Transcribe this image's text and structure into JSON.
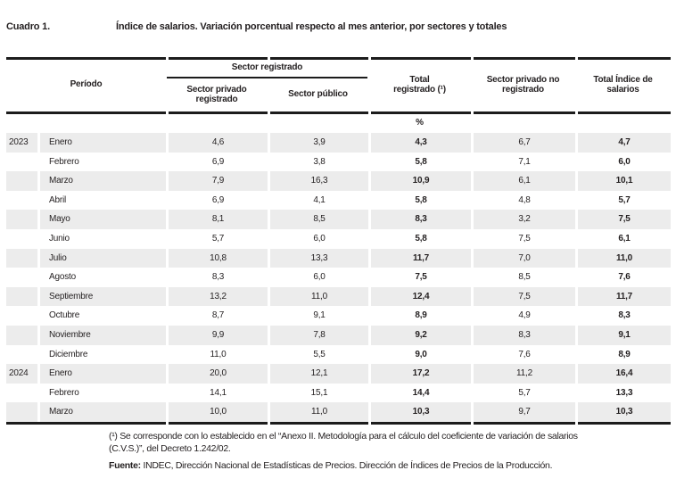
{
  "title": {
    "label": "Cuadro 1.",
    "text": "Índice de salarios. Variación porcentual respecto al mes anterior, por sectores y totales"
  },
  "table": {
    "header": {
      "periodo": "Período",
      "group_sector_registrado": "Sector registrado",
      "sector_privado_registrado": {
        "line1": "Sector privado",
        "line2": "registrado"
      },
      "sector_publico": {
        "line1": "Sector público"
      },
      "total_registrado": {
        "line1": "Total",
        "line2": "registrado (¹)"
      },
      "sector_privado_no_registrado": {
        "line1": "Sector privado no",
        "line2": "registrado"
      },
      "total_indice_salarios": {
        "line1": "Total Índice de",
        "line2": "salarios"
      },
      "unit": "%"
    },
    "rows": [
      {
        "year": "2023",
        "month": "Enero",
        "values": [
          "4,6",
          "3,9",
          "4,3",
          "6,7",
          "4,7"
        ]
      },
      {
        "year": "",
        "month": "Febrero",
        "values": [
          "6,9",
          "3,8",
          "5,8",
          "7,1",
          "6,0"
        ]
      },
      {
        "year": "",
        "month": "Marzo",
        "values": [
          "7,9",
          "16,3",
          "10,9",
          "6,1",
          "10,1"
        ]
      },
      {
        "year": "",
        "month": "Abril",
        "values": [
          "6,9",
          "4,1",
          "5,8",
          "4,8",
          "5,7"
        ]
      },
      {
        "year": "",
        "month": "Mayo",
        "values": [
          "8,1",
          "8,5",
          "8,3",
          "3,2",
          "7,5"
        ]
      },
      {
        "year": "",
        "month": "Junio",
        "values": [
          "5,7",
          "6,0",
          "5,8",
          "7,5",
          "6,1"
        ]
      },
      {
        "year": "",
        "month": "Julio",
        "values": [
          "10,8",
          "13,3",
          "11,7",
          "7,0",
          "11,0"
        ]
      },
      {
        "year": "",
        "month": "Agosto",
        "values": [
          "8,3",
          "6,0",
          "7,5",
          "8,5",
          "7,6"
        ]
      },
      {
        "year": "",
        "month": "Septiembre",
        "values": [
          "13,2",
          "11,0",
          "12,4",
          "7,5",
          "11,7"
        ]
      },
      {
        "year": "",
        "month": "Octubre",
        "values": [
          "8,7",
          "9,1",
          "8,9",
          "4,9",
          "8,3"
        ]
      },
      {
        "year": "",
        "month": "Noviembre",
        "values": [
          "9,9",
          "7,8",
          "9,2",
          "8,3",
          "9,1"
        ]
      },
      {
        "year": "",
        "month": "Diciembre",
        "values": [
          "11,0",
          "5,5",
          "9,0",
          "7,6",
          "8,9"
        ]
      },
      {
        "year": "2024",
        "month": "Enero",
        "values": [
          "20,0",
          "12,1",
          "17,2",
          "11,2",
          "16,4"
        ]
      },
      {
        "year": "",
        "month": "Febrero",
        "values": [
          "14,1",
          "15,1",
          "14,4",
          "5,7",
          "13,3"
        ]
      },
      {
        "year": "",
        "month": "Marzo",
        "values": [
          "10,0",
          "11,0",
          "10,3",
          "9,7",
          "10,3"
        ]
      }
    ]
  },
  "footnotes": {
    "line1": "(¹) Se corresponde con lo establecido en el “Anexo II. Metodología para el cálculo del coeficiente de variación de salarios",
    "line2": "(C.V.S.)”, del Decreto 1.242/02.",
    "fuente_label": "Fuente:",
    "fuente_text": " INDEC, Dirección Nacional de Estadísticas de Precios. Dirección de Índices de Precios de la Producción."
  },
  "colors": {
    "stripe": "#ececec",
    "text": "#231f20",
    "rule": "#1c1c1c"
  }
}
